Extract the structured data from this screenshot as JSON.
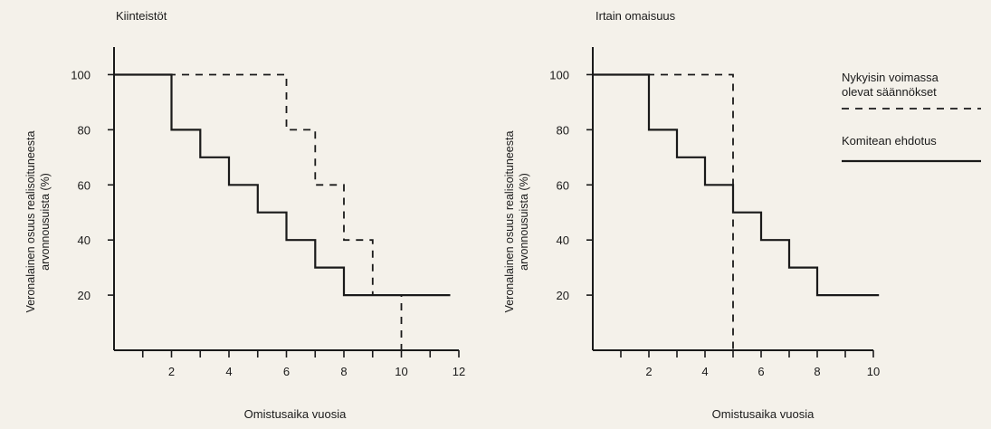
{
  "legend": {
    "current_rules": "Nykyisin voimassa olevat säännökset",
    "current_rules_line1": "Nykyisin voimassa",
    "current_rules_line2": "olevat säännökset",
    "proposal": "Komitean ehdotus"
  },
  "chart_data": [
    {
      "type": "line",
      "title": "Kiinteistöt",
      "xlabel": "Omistusaika vuosia",
      "ylabel": "Veronalainen osuus realisoituneesta arvonnousuista (%)",
      "ylabel_lines": [
        "Veronalainen osuus realisoituneesta",
        "arvonnousuista (%)"
      ],
      "xlim": [
        0,
        12
      ],
      "ylim": [
        0,
        110
      ],
      "xticks": [
        1,
        2,
        3,
        4,
        5,
        6,
        7,
        8,
        9,
        10,
        11,
        12
      ],
      "xtick_labels": {
        "2": "2",
        "4": "4",
        "6": "6",
        "8": "8",
        "10": "10",
        "12": "12"
      },
      "yticks": [
        20,
        40,
        60,
        80,
        100
      ],
      "grid": false,
      "step": true,
      "series": [
        {
          "name": "Nykyisin voimassa olevat säännökset",
          "style": "dashed",
          "x": [
            0,
            6,
            6,
            7,
            7,
            8,
            8,
            9,
            9,
            10,
            10
          ],
          "y": [
            100,
            100,
            80,
            80,
            60,
            60,
            40,
            40,
            20,
            20,
            0
          ]
        },
        {
          "name": "Komitean ehdotus",
          "style": "solid",
          "x": [
            0,
            2,
            2,
            3,
            3,
            4,
            4,
            5,
            5,
            6,
            6,
            7,
            7,
            8,
            8,
            11.7
          ],
          "y": [
            100,
            100,
            80,
            80,
            70,
            70,
            60,
            60,
            50,
            50,
            40,
            40,
            30,
            30,
            20,
            20
          ]
        }
      ]
    },
    {
      "type": "line",
      "title": "Irtain omaisuus",
      "xlabel": "Omistusaika vuosia",
      "ylabel": "Veronalainen osuus realisoituneesta arvonnousuista (%)",
      "ylabel_lines": [
        "Veronalainen osuus realisoituneesta",
        "arvonnousuista (%)"
      ],
      "xlim": [
        0,
        10
      ],
      "ylim": [
        0,
        110
      ],
      "xticks": [
        1,
        2,
        3,
        4,
        5,
        6,
        7,
        8,
        9,
        10
      ],
      "xtick_labels": {
        "2": "2",
        "4": "4",
        "6": "6",
        "8": "8",
        "10": "10"
      },
      "yticks": [
        20,
        40,
        60,
        80,
        100
      ],
      "grid": false,
      "step": true,
      "series": [
        {
          "name": "Nykyisin voimassa olevat säännökset",
          "style": "dashed",
          "x": [
            0,
            5,
            5
          ],
          "y": [
            100,
            100,
            0
          ]
        },
        {
          "name": "Komitean ehdotus",
          "style": "solid",
          "x": [
            0,
            2,
            2,
            3,
            3,
            4,
            4,
            5,
            5,
            6,
            6,
            7,
            7,
            8,
            8,
            10.2
          ],
          "y": [
            100,
            100,
            80,
            80,
            70,
            70,
            60,
            60,
            50,
            50,
            40,
            40,
            30,
            30,
            20,
            20
          ]
        }
      ]
    }
  ]
}
